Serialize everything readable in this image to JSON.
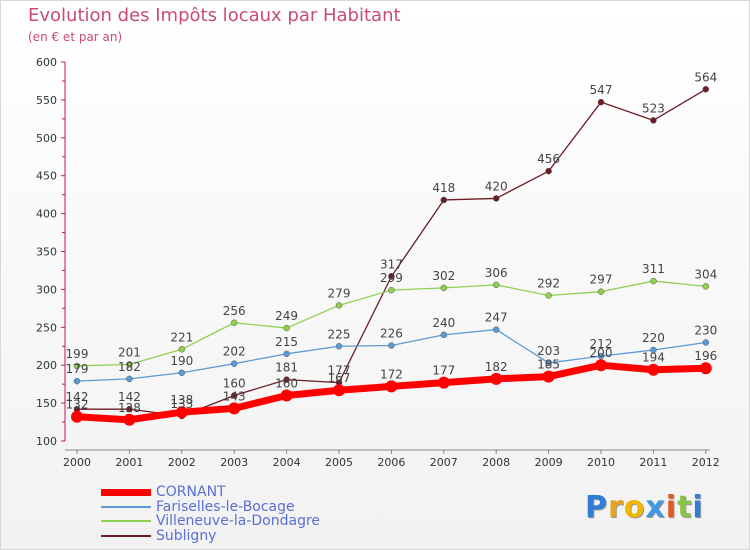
{
  "chart_data": {
    "type": "line",
    "title": "Evolution des Impôts locaux par Habitant",
    "subtitle": "(en € et par an)",
    "xlabel": "",
    "ylabel": "",
    "x": [
      "2000",
      "2001",
      "2002",
      "2003",
      "2004",
      "2005",
      "2006",
      "2007",
      "2008",
      "2009",
      "2010",
      "2011",
      "2012"
    ],
    "ylim": [
      100,
      600
    ],
    "yticks": [
      100,
      150,
      200,
      250,
      300,
      350,
      400,
      450,
      500,
      550,
      600
    ],
    "grid": false,
    "legend_position": "bottom-left",
    "series": [
      {
        "name": "Subligny",
        "color": "#6b1c24",
        "values": [
          142,
          142,
          133,
          160,
          181,
          177,
          317,
          418,
          420,
          456,
          547,
          523,
          564
        ],
        "labels": [
          "142",
          "142",
          "133",
          "160",
          "181",
          "177",
          "317",
          "418",
          "420",
          "456",
          "547",
          "523",
          "564"
        ]
      },
      {
        "name": "Villeneuve-la-Dondagre",
        "color": "#8fd14f",
        "values": [
          199,
          201,
          221,
          256,
          249,
          279,
          299,
          302,
          306,
          292,
          297,
          311,
          304
        ],
        "labels": [
          "199",
          "201",
          "221",
          "256",
          "249",
          "279",
          "299",
          "302",
          "306",
          "292",
          "297",
          "311",
          "304"
        ]
      },
      {
        "name": "Fariselles-le-Bocage",
        "color": "#5b9bd5",
        "values": [
          179,
          182,
          190,
          202,
          215,
          225,
          226,
          240,
          247,
          203,
          212,
          220,
          230
        ],
        "labels": [
          "179",
          "182",
          "190",
          "202",
          "215",
          "225",
          "226",
          "240",
          "247",
          "203",
          "212",
          "220",
          "230"
        ]
      },
      {
        "name": "CORNANT",
        "color": "#ff0000",
        "values": [
          132,
          128,
          138,
          143,
          160,
          167,
          172,
          177,
          182,
          185,
          200,
          194,
          196
        ],
        "labels": [
          "132",
          "128",
          "138",
          "143",
          "160",
          "167",
          "172",
          "177",
          "182",
          "185",
          "200",
          "194",
          "196"
        ]
      }
    ]
  },
  "legend": {
    "items": [
      {
        "label": "CORNANT",
        "color": "#ff0000",
        "thickness": 7
      },
      {
        "label": "Fariselles-le-Bocage",
        "color": "#5b9bd5",
        "thickness": 2
      },
      {
        "label": "Villeneuve-la-Dondagre",
        "color": "#8fd14f",
        "thickness": 2
      },
      {
        "label": "Subligny",
        "color": "#6b1c24",
        "thickness": 2
      }
    ]
  },
  "logo": {
    "letters": [
      "P",
      "r",
      "o",
      "x",
      "i",
      "t",
      "i"
    ],
    "colors": [
      "#2f7fd6",
      "#e8a21b",
      "#f2b705",
      "#3f97e8",
      "#e25a24",
      "#8bc34a",
      "#2f7fd6"
    ]
  }
}
